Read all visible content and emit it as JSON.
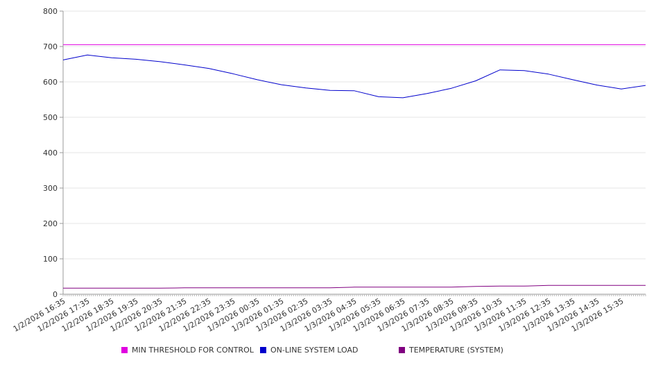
{
  "chart_data": {
    "type": "line",
    "title": "",
    "xlabel": "",
    "ylabel": "",
    "ylim": [
      0,
      800
    ],
    "yticks": [
      0,
      100,
      200,
      300,
      400,
      500,
      600,
      700,
      800
    ],
    "x_tick_labels": [
      "1/2/2026 16:35",
      "1/2/2026 17:35",
      "1/2/2026 18:35",
      "1/2/2026 19:35",
      "1/2/2026 20:35",
      "1/2/2026 21:35",
      "1/2/2026 22:35",
      "1/2/2026 23:35",
      "1/3/2026 00:35",
      "1/3/2026 01:35",
      "1/3/2026 02:35",
      "1/3/2026 03:35",
      "1/3/2026 04:35",
      "1/3/2026 05:35",
      "1/3/2026 06:35",
      "1/3/2026 07:35",
      "1/3/2026 08:35",
      "1/3/2026 09:35",
      "1/3/2026 10:35",
      "1/3/2026 11:35",
      "1/3/2026 12:35",
      "1/3/2026 13:35",
      "1/3/2026 14:35",
      "1/3/2026 15:35"
    ],
    "x_minutes_between_ticks": 60,
    "grid": true,
    "legend_position": "bottom",
    "series": [
      {
        "name": "MIN THRESHOLD FOR CONTROL",
        "color": "#e000e0",
        "values": [
          705,
          705,
          705,
          705,
          705,
          705,
          705,
          705,
          705,
          705,
          705,
          705,
          705,
          705,
          705,
          705,
          705,
          705,
          705,
          705,
          705,
          705,
          705,
          705,
          705
        ]
      },
      {
        "name": "ON-LINE SYSTEM LOAD",
        "color": "#0000cc",
        "values": [
          662,
          676,
          668,
          664,
          657,
          648,
          638,
          623,
          606,
          592,
          583,
          576,
          575,
          558,
          555,
          567,
          582,
          603,
          634,
          632,
          622,
          606,
          591,
          580,
          590
        ]
      },
      {
        "name": "TEMPERATURE (SYSTEM)",
        "color": "#800080",
        "values": [
          17,
          17,
          17,
          17,
          17,
          18,
          18,
          18,
          18,
          18,
          18,
          18,
          20,
          20,
          20,
          20,
          20,
          22,
          23,
          23,
          25,
          25,
          25,
          25,
          25
        ]
      }
    ]
  }
}
